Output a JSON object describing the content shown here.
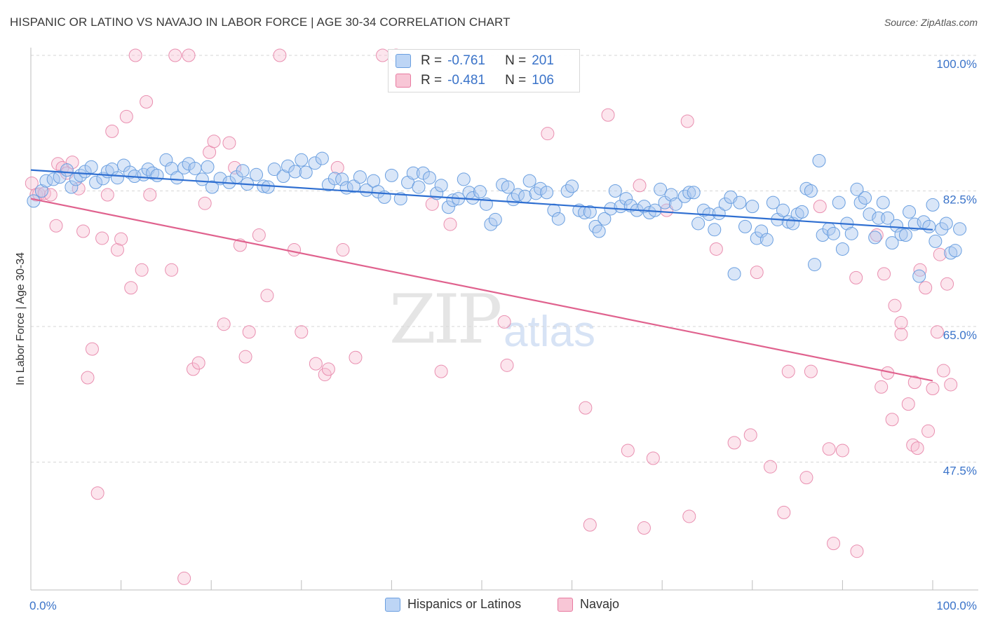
{
  "title": "HISPANIC OR LATINO VS NAVAJO IN LABOR FORCE | AGE 30-34 CORRELATION CHART",
  "source": "Source: ZipAtlas.com",
  "watermark": {
    "zip": "ZIP",
    "atlas": "atlas"
  },
  "chart_data": {
    "type": "scatter",
    "ylabel": "In Labor Force | Age 30-34",
    "xlim": [
      0,
      100
    ],
    "ylim": [
      31,
      100
    ],
    "x_tick_labels": [
      "0.0%",
      "100.0%"
    ],
    "y_ticks": [
      100,
      82.5,
      65,
      47.5
    ],
    "y_tick_labels": [
      "100.0%",
      "82.5%",
      "65.0%",
      "47.5%"
    ],
    "legend": [
      {
        "name": "Hispanics or Latinos",
        "r_label": "R =",
        "r": "-0.761",
        "n_label": "N =",
        "n": "201",
        "color": "#6a9fe0",
        "fill": "#bdd5f5"
      },
      {
        "name": "Navajo",
        "r_label": "R =",
        "r": "-0.481",
        "n_label": "N =",
        "n": "106",
        "color": "#e87aa0",
        "fill": "#f8c6d6"
      }
    ],
    "series": [
      {
        "name": "Hispanics or Latinos",
        "trend": {
          "x": [
            0,
            100
          ],
          "y": [
            85.2,
            77.5
          ]
        },
        "points": [
          [
            0.3,
            81.2
          ],
          [
            1.2,
            82.5
          ],
          [
            1.7,
            83.8
          ],
          [
            2.5,
            84.0
          ],
          [
            3.2,
            84.3
          ],
          [
            4.0,
            85.2
          ],
          [
            4.5,
            83.0
          ],
          [
            5.0,
            84.0
          ],
          [
            5.5,
            84.5
          ],
          [
            6.0,
            85.0
          ],
          [
            6.7,
            85.6
          ],
          [
            7.2,
            83.6
          ],
          [
            8.0,
            84.1
          ],
          [
            8.5,
            85.0
          ],
          [
            9.0,
            85.3
          ],
          [
            9.6,
            84.2
          ],
          [
            10.3,
            85.8
          ],
          [
            11.0,
            84.9
          ],
          [
            11.5,
            84.4
          ],
          [
            12.5,
            84.6
          ],
          [
            13.0,
            85.3
          ],
          [
            13.5,
            84.8
          ],
          [
            14.0,
            84.5
          ],
          [
            15.0,
            86.5
          ],
          [
            15.6,
            85.4
          ],
          [
            16.2,
            84.2
          ],
          [
            17.0,
            85.5
          ],
          [
            17.5,
            86.0
          ],
          [
            18.2,
            85.4
          ],
          [
            19.0,
            84.0
          ],
          [
            19.6,
            85.6
          ],
          [
            20.1,
            83.0
          ],
          [
            21.0,
            84.1
          ],
          [
            22.0,
            83.6
          ],
          [
            22.8,
            84.3
          ],
          [
            23.5,
            85.1
          ],
          [
            24.0,
            83.4
          ],
          [
            25.0,
            84.6
          ],
          [
            25.8,
            83.1
          ],
          [
            26.3,
            83.0
          ],
          [
            27.0,
            85.3
          ],
          [
            28.0,
            84.4
          ],
          [
            28.5,
            85.7
          ],
          [
            29.3,
            85.0
          ],
          [
            30.0,
            86.5
          ],
          [
            30.5,
            84.9
          ],
          [
            31.5,
            86.1
          ],
          [
            32.3,
            86.7
          ],
          [
            33.0,
            83.3
          ],
          [
            33.7,
            84.1
          ],
          [
            34.5,
            84.0
          ],
          [
            35.0,
            82.9
          ],
          [
            35.8,
            83.1
          ],
          [
            36.5,
            84.3
          ],
          [
            37.2,
            82.6
          ],
          [
            38.0,
            83.8
          ],
          [
            38.5,
            82.4
          ],
          [
            39.2,
            81.7
          ],
          [
            40.0,
            84.5
          ],
          [
            41.0,
            81.5
          ],
          [
            41.8,
            83.6
          ],
          [
            42.4,
            84.8
          ],
          [
            43.0,
            83.0
          ],
          [
            43.5,
            84.8
          ],
          [
            44.2,
            84.2
          ],
          [
            45.0,
            82.2
          ],
          [
            45.5,
            83.2
          ],
          [
            46.3,
            80.4
          ],
          [
            46.8,
            81.3
          ],
          [
            47.4,
            81.5
          ],
          [
            48.0,
            84.0
          ],
          [
            48.6,
            82.3
          ],
          [
            49.0,
            81.6
          ],
          [
            49.8,
            82.4
          ],
          [
            50.5,
            80.8
          ],
          [
            51.0,
            78.2
          ],
          [
            51.5,
            78.8
          ],
          [
            52.3,
            83.3
          ],
          [
            52.9,
            83.0
          ],
          [
            53.5,
            81.4
          ],
          [
            54.0,
            82.0
          ],
          [
            54.8,
            81.8
          ],
          [
            55.3,
            83.8
          ],
          [
            56.0,
            82.2
          ],
          [
            56.5,
            82.8
          ],
          [
            57.2,
            82.3
          ],
          [
            58.0,
            80.0
          ],
          [
            58.5,
            78.9
          ],
          [
            59.5,
            82.5
          ],
          [
            60.0,
            83.1
          ],
          [
            60.8,
            80.0
          ],
          [
            61.4,
            79.7
          ],
          [
            62.0,
            79.8
          ],
          [
            62.6,
            77.9
          ],
          [
            63.0,
            77.3
          ],
          [
            63.6,
            78.9
          ],
          [
            64.3,
            80.2
          ],
          [
            64.8,
            82.5
          ],
          [
            65.4,
            80.5
          ],
          [
            66.0,
            81.5
          ],
          [
            66.5,
            80.6
          ],
          [
            67.2,
            80.0
          ],
          [
            68.0,
            80.5
          ],
          [
            68.6,
            79.7
          ],
          [
            69.2,
            80.0
          ],
          [
            69.8,
            82.7
          ],
          [
            70.3,
            81.0
          ],
          [
            71.0,
            82.0
          ],
          [
            71.5,
            80.8
          ],
          [
            72.5,
            81.8
          ],
          [
            73.0,
            82.3
          ],
          [
            73.5,
            82.3
          ],
          [
            74.0,
            78.3
          ],
          [
            74.6,
            80.0
          ],
          [
            75.2,
            79.5
          ],
          [
            75.8,
            77.5
          ],
          [
            76.3,
            79.6
          ],
          [
            77.0,
            80.8
          ],
          [
            77.6,
            81.7
          ],
          [
            78.0,
            71.8
          ],
          [
            78.6,
            81.0
          ],
          [
            79.2,
            77.9
          ],
          [
            80.0,
            80.5
          ],
          [
            80.5,
            76.4
          ],
          [
            81.0,
            77.3
          ],
          [
            81.6,
            76.2
          ],
          [
            82.3,
            81.0
          ],
          [
            82.8,
            78.8
          ],
          [
            83.4,
            80.0
          ],
          [
            84.0,
            78.5
          ],
          [
            84.5,
            78.3
          ],
          [
            85.0,
            79.5
          ],
          [
            85.5,
            79.8
          ],
          [
            86.0,
            82.8
          ],
          [
            86.5,
            82.5
          ],
          [
            86.9,
            73.0
          ],
          [
            87.4,
            86.4
          ],
          [
            87.8,
            76.8
          ],
          [
            88.5,
            77.6
          ],
          [
            89.0,
            77.0
          ],
          [
            89.6,
            81.0
          ],
          [
            90.0,
            75.0
          ],
          [
            90.5,
            78.3
          ],
          [
            91.0,
            77.0
          ],
          [
            91.6,
            82.7
          ],
          [
            92.0,
            81.0
          ],
          [
            92.5,
            81.6
          ],
          [
            93.0,
            79.5
          ],
          [
            93.6,
            76.5
          ],
          [
            94.0,
            79.0
          ],
          [
            94.5,
            81.0
          ],
          [
            95.0,
            79.0
          ],
          [
            95.5,
            75.8
          ],
          [
            96.0,
            78.0
          ],
          [
            96.5,
            76.9
          ],
          [
            97.0,
            76.8
          ],
          [
            97.4,
            79.8
          ],
          [
            98.0,
            78.2
          ],
          [
            98.5,
            71.5
          ],
          [
            99.0,
            78.5
          ],
          [
            99.6,
            77.9
          ],
          [
            100.0,
            80.7
          ],
          [
            100.3,
            76.0
          ],
          [
            101.0,
            77.6
          ],
          [
            101.5,
            78.3
          ],
          [
            102.0,
            74.5
          ],
          [
            102.5,
            74.8
          ],
          [
            103.0,
            77.6
          ]
        ]
      },
      {
        "name": "Navajo",
        "trend": {
          "x": [
            0,
            100
          ],
          "y": [
            81.5,
            58.0
          ]
        },
        "points": [
          [
            0.1,
            83.5
          ],
          [
            0.6,
            82.0
          ],
          [
            0.9,
            82.1
          ],
          [
            1.5,
            82.2
          ],
          [
            2.2,
            82.0
          ],
          [
            2.8,
            78.0
          ],
          [
            3.0,
            86.0
          ],
          [
            3.5,
            85.5
          ],
          [
            4.0,
            84.8
          ],
          [
            4.6,
            86.2
          ],
          [
            5.3,
            82.8
          ],
          [
            5.8,
            77.3
          ],
          [
            6.3,
            58.4
          ],
          [
            6.8,
            62.1
          ],
          [
            7.4,
            43.5
          ],
          [
            7.9,
            76.4
          ],
          [
            8.5,
            82.0
          ],
          [
            9.0,
            90.2
          ],
          [
            9.6,
            74.9
          ],
          [
            10.0,
            76.3
          ],
          [
            10.6,
            92.1
          ],
          [
            11.1,
            70.0
          ],
          [
            11.6,
            100.0
          ],
          [
            12.3,
            72.3
          ],
          [
            12.8,
            94.0
          ],
          [
            13.2,
            82.0
          ],
          [
            15.6,
            72.3
          ],
          [
            16.0,
            100.0
          ],
          [
            17.0,
            32.5
          ],
          [
            17.5,
            100.0
          ],
          [
            18.0,
            59.5
          ],
          [
            18.6,
            60.3
          ],
          [
            19.3,
            80.9
          ],
          [
            19.8,
            87.5
          ],
          [
            20.3,
            88.9
          ],
          [
            21.4,
            65.3
          ],
          [
            22.0,
            88.7
          ],
          [
            22.6,
            85.5
          ],
          [
            23.2,
            75.5
          ],
          [
            23.8,
            61.1
          ],
          [
            24.2,
            64.3
          ],
          [
            25.3,
            76.8
          ],
          [
            26.2,
            69.0
          ],
          [
            27.6,
            100.0
          ],
          [
            29.2,
            74.9
          ],
          [
            30.0,
            64.3
          ],
          [
            31.6,
            60.2
          ],
          [
            32.6,
            58.8
          ],
          [
            33.0,
            59.5
          ],
          [
            34.0,
            85.5
          ],
          [
            34.6,
            74.9
          ],
          [
            36.0,
            61.0
          ],
          [
            39.0,
            100.0
          ],
          [
            40.5,
            100.0
          ],
          [
            44.5,
            80.8
          ],
          [
            45.5,
            59.2
          ],
          [
            46.5,
            78.2
          ],
          [
            52.5,
            65.6
          ],
          [
            52.8,
            60.0
          ],
          [
            57.3,
            89.9
          ],
          [
            61.5,
            54.5
          ],
          [
            62.0,
            39.4
          ],
          [
            64.0,
            92.3
          ],
          [
            66.2,
            49.0
          ],
          [
            67.5,
            83.2
          ],
          [
            68.0,
            39.0
          ],
          [
            69.0,
            48.0
          ],
          [
            70.5,
            80.0
          ],
          [
            72.8,
            91.5
          ],
          [
            73.0,
            40.5
          ],
          [
            76.0,
            75.0
          ],
          [
            78.0,
            50.0
          ],
          [
            79.8,
            51.0
          ],
          [
            80.5,
            72.0
          ],
          [
            82.0,
            46.9
          ],
          [
            83.5,
            41.0
          ],
          [
            84.0,
            59.2
          ],
          [
            86.0,
            45.5
          ],
          [
            86.5,
            59.2
          ],
          [
            87.5,
            80.5
          ],
          [
            88.5,
            49.2
          ],
          [
            89.0,
            37.0
          ],
          [
            90.0,
            49.0
          ],
          [
            91.5,
            71.3
          ],
          [
            91.6,
            36.0
          ],
          [
            93.8,
            76.8
          ],
          [
            94.3,
            57.2
          ],
          [
            94.6,
            71.8
          ],
          [
            95.0,
            59.0
          ],
          [
            95.5,
            53.0
          ],
          [
            95.8,
            67.7
          ],
          [
            96.5,
            64.0
          ],
          [
            96.5,
            65.5
          ],
          [
            97.3,
            55.0
          ],
          [
            97.8,
            49.7
          ],
          [
            98.0,
            57.8
          ],
          [
            98.3,
            49.3
          ],
          [
            98.6,
            72.3
          ],
          [
            99.2,
            70.0
          ],
          [
            99.5,
            51.5
          ],
          [
            100.0,
            57.0
          ],
          [
            100.5,
            64.3
          ],
          [
            100.8,
            74.3
          ],
          [
            101.2,
            59.3
          ],
          [
            101.6,
            70.5
          ],
          [
            102.0,
            57.5
          ]
        ]
      }
    ]
  }
}
